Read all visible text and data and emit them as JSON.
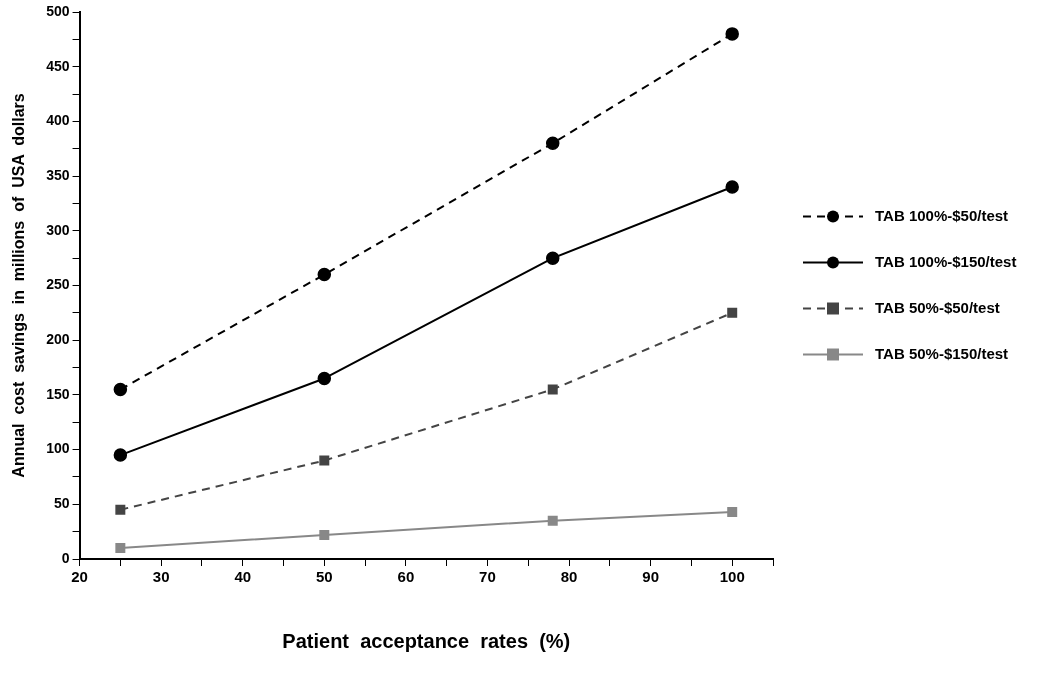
{
  "chart_data": {
    "type": "line",
    "xlabel": "Patient  acceptance  rates  (%)",
    "ylabel": "Annual  cost  savings  in  millions  of  USA  dollars",
    "x": [
      25,
      50,
      78,
      100
    ],
    "series": [
      {
        "name": "TAB 100%-$50/test",
        "color": "#000000",
        "marker": "circle",
        "line_style": "dashed",
        "values": [
          155,
          260,
          380,
          480
        ]
      },
      {
        "name": "TAB 100%-$150/test",
        "color": "#000000",
        "marker": "circle",
        "line_style": "solid",
        "values": [
          95,
          165,
          275,
          340
        ]
      },
      {
        "name": "TAB 50%-$50/test",
        "color": "#444444",
        "marker": "square",
        "line_style": "dashed",
        "values": [
          45,
          90,
          155,
          225
        ]
      },
      {
        "name": "TAB 50%-$150/test",
        "color": "#888888",
        "marker": "square",
        "line_style": "solid",
        "values": [
          10,
          22,
          35,
          43
        ]
      }
    ],
    "xlim": [
      20,
      105
    ],
    "xticks": [
      20,
      {
        "value": 25,
        "label": null
      },
      30,
      {
        "value": 35,
        "label": null
      },
      40,
      {
        "value": 45,
        "label": null
      },
      50,
      {
        "value": 55,
        "label": null
      },
      60,
      {
        "value": 65,
        "label": null
      },
      70,
      {
        "value": 75,
        "label": null
      },
      80,
      {
        "value": 85,
        "label": null
      },
      90,
      {
        "value": 95,
        "label": null
      },
      100,
      {
        "value": 105,
        "label": null
      }
    ],
    "ylim": [
      0,
      500
    ],
    "yticks": [
      0,
      {
        "value": 25,
        "label": null
      },
      50,
      {
        "value": 75,
        "label": null
      },
      100,
      {
        "value": 125,
        "label": null
      },
      150,
      {
        "value": 175,
        "label": null
      },
      200,
      {
        "value": 225,
        "label": null
      },
      250,
      {
        "value": 275,
        "label": null
      },
      300,
      {
        "value": 325,
        "label": null
      },
      350,
      {
        "value": 375,
        "label": null
      },
      400,
      {
        "value": 425,
        "label": null
      },
      450,
      {
        "value": 475,
        "label": null
      },
      500
    ],
    "grid": false,
    "legend": "right"
  }
}
